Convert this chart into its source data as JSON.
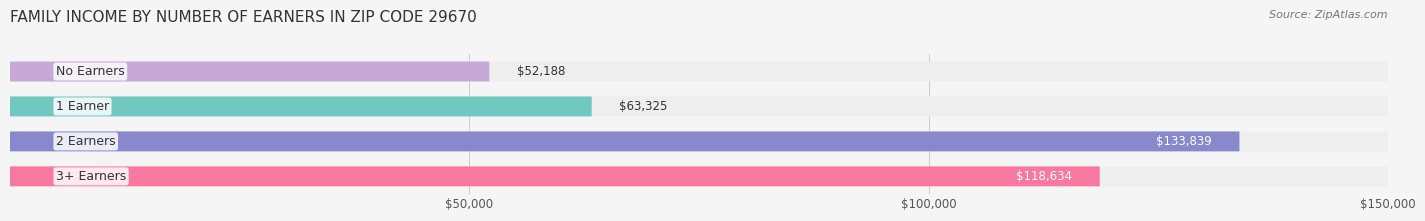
{
  "title": "FAMILY INCOME BY NUMBER OF EARNERS IN ZIP CODE 29670",
  "source": "Source: ZipAtlas.com",
  "categories": [
    "No Earners",
    "1 Earner",
    "2 Earners",
    "3+ Earners"
  ],
  "values": [
    52188,
    63325,
    133839,
    118634
  ],
  "bar_colors": [
    "#c8a8d8",
    "#70c8c0",
    "#8888cc",
    "#f878a0"
  ],
  "label_colors": [
    "#333333",
    "#333333",
    "#ffffff",
    "#ffffff"
  ],
  "xlim": [
    0,
    150000
  ],
  "xticks": [
    50000,
    100000,
    150000
  ],
  "xtick_labels": [
    "$50,000",
    "$100,000",
    "$150,000"
  ],
  "value_labels": [
    "$52,188",
    "$63,325",
    "$133,839",
    "$118,634"
  ],
  "bg_color": "#f5f5f5",
  "bar_bg_color": "#eeeeee",
  "title_fontsize": 11,
  "source_fontsize": 8,
  "label_fontsize": 9,
  "value_fontsize": 8.5,
  "tick_fontsize": 8.5
}
